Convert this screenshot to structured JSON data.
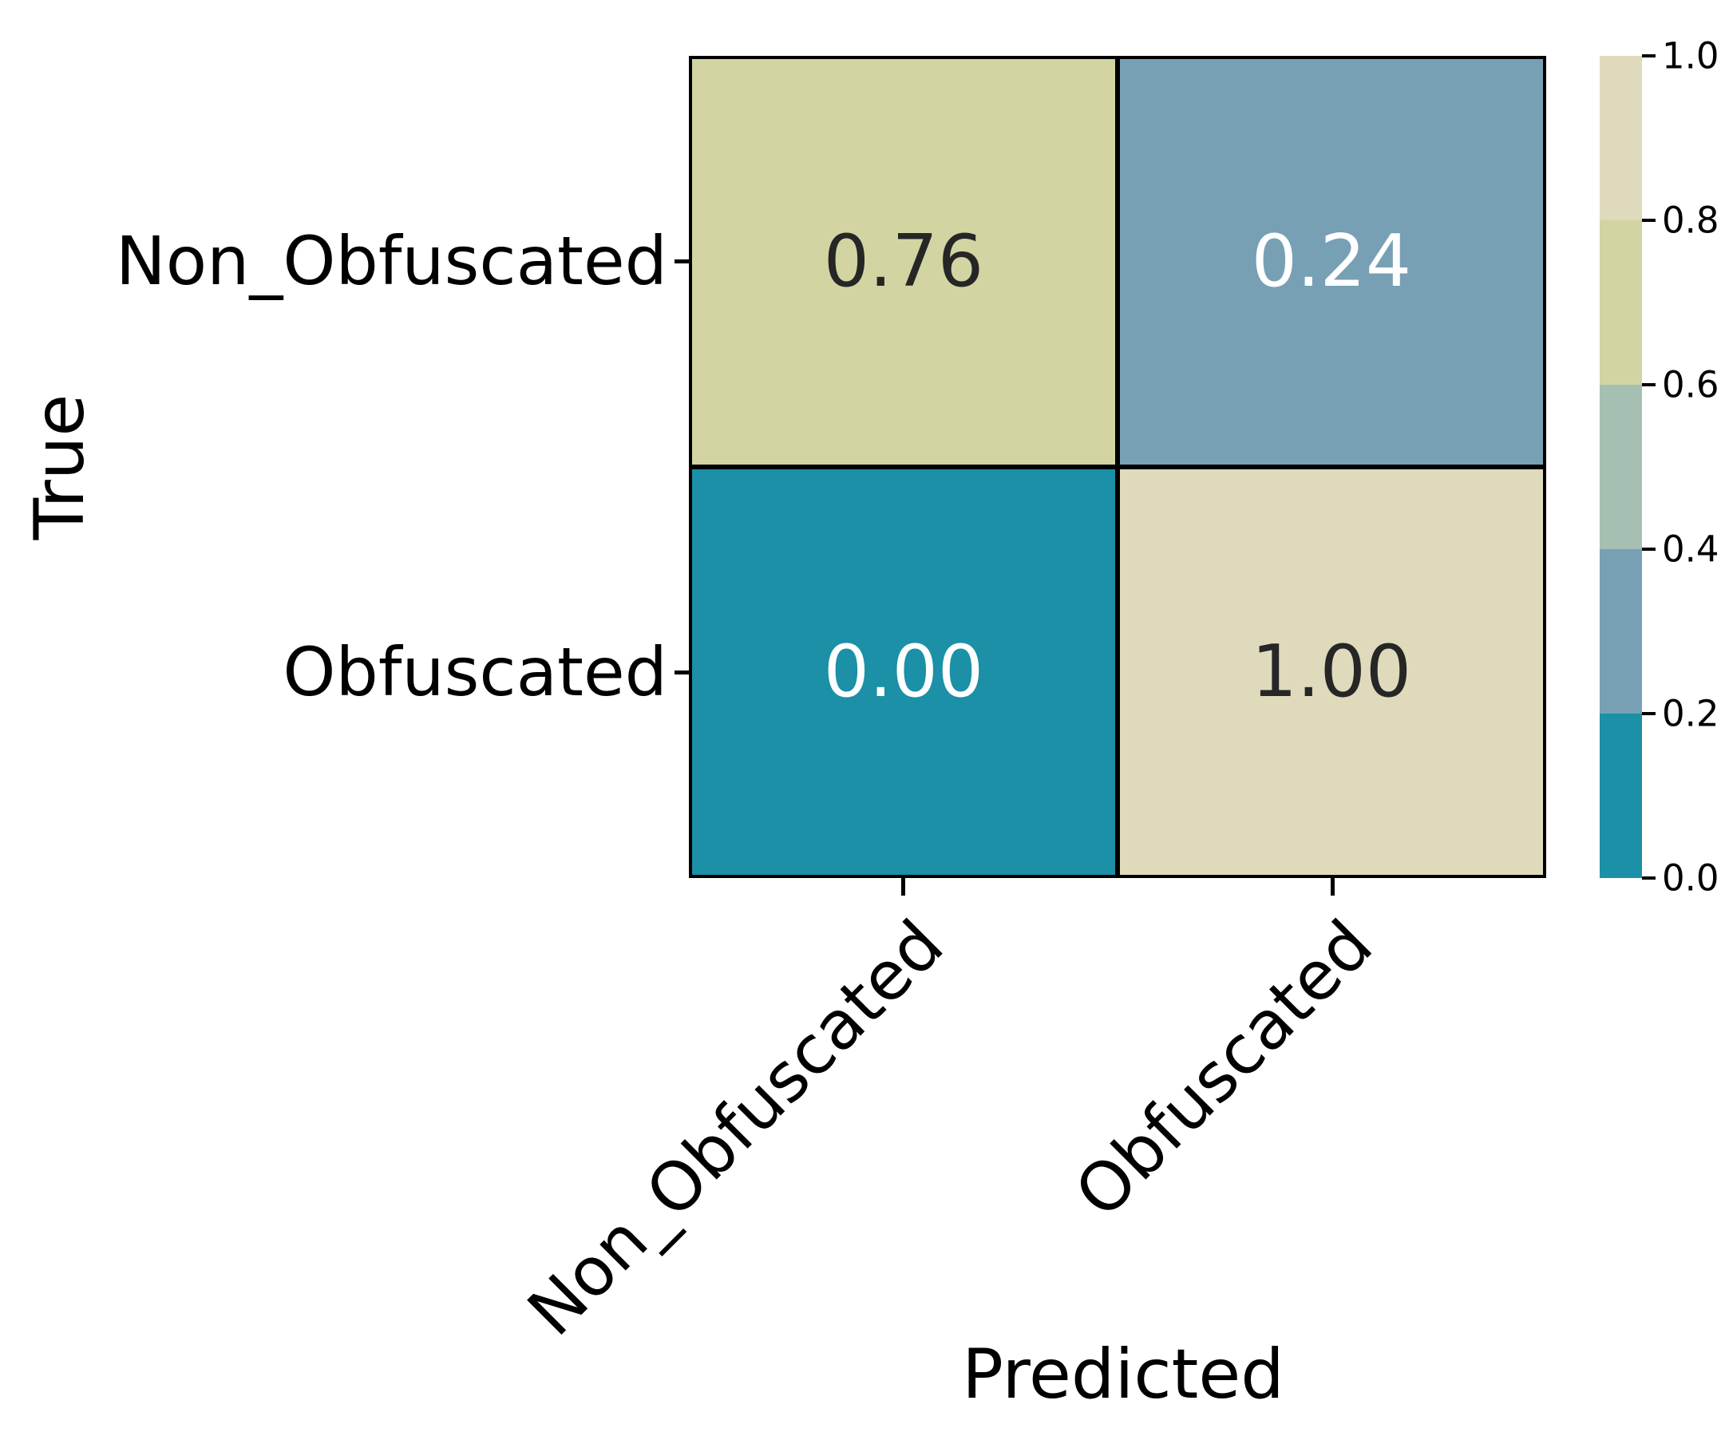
{
  "axes": {
    "x_label": "Predicted",
    "y_label": "True"
  },
  "chart_data": {
    "type": "heatmap",
    "title": "",
    "xlabel": "Predicted",
    "ylabel": "True",
    "x_categories": [
      "Non_Obfuscated",
      "Obfuscated"
    ],
    "y_categories": [
      "Non_Obfuscated",
      "Obfuscated"
    ],
    "values": [
      [
        0.76,
        0.24
      ],
      [
        0.0,
        1.0
      ]
    ],
    "cell_labels": [
      [
        "0.76",
        "0.24"
      ],
      [
        "0.00",
        "1.00"
      ]
    ],
    "cell_colors": [
      [
        "#d2d4a2",
        "#78a0b5"
      ],
      [
        "#1b90a6",
        "#dfdabc"
      ]
    ],
    "cell_text_colors": [
      [
        "#262626",
        "#ffffff"
      ],
      [
        "#ffffff",
        "#262626"
      ]
    ],
    "value_range": [
      0,
      1
    ],
    "gridline_color": "#000000",
    "background_color": "#ffffff",
    "legend_position": "none",
    "colorbar": {
      "position": "right",
      "orientation": "vertical",
      "tick_labels": [
        "1.0",
        "0.8",
        "0.6",
        "0.4",
        "0.2",
        "0.0"
      ],
      "segment_colors_top_to_bottom": [
        "#dfdabc",
        "#d2d4a2",
        "#a5c0b2",
        "#78a0b5",
        "#1b90a6"
      ]
    }
  }
}
